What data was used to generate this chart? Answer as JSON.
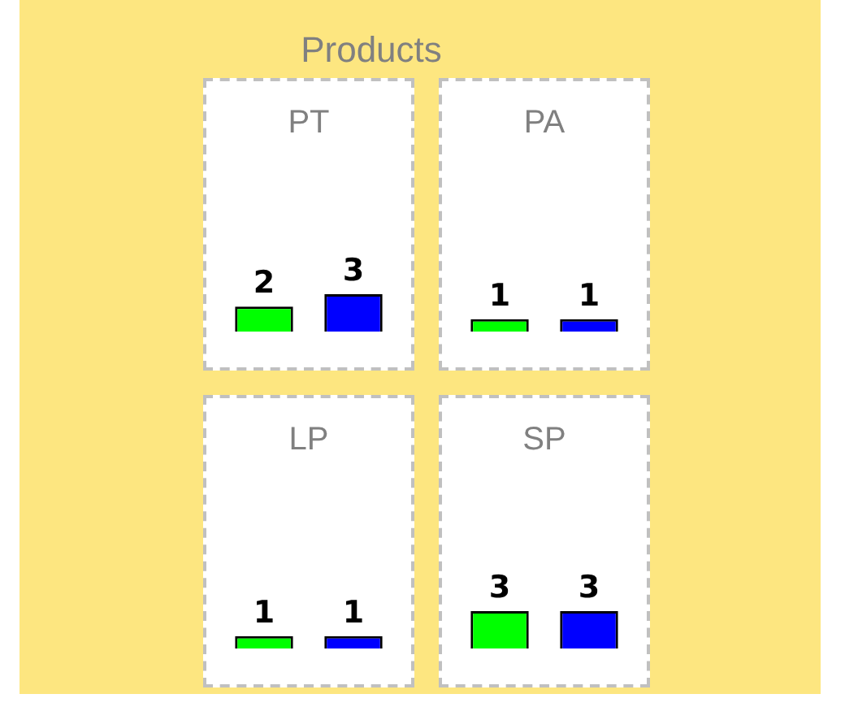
{
  "chart_data": [
    {
      "type": "bar",
      "title": "PT",
      "annotations": [
        "Products"
      ],
      "categories": [
        null,
        null
      ],
      "values": [
        2,
        3
      ],
      "colors": [
        "#00ff00",
        "#0000ff"
      ],
      "data_labels": true
    },
    {
      "type": "bar",
      "title": "PA",
      "categories": [
        null,
        null
      ],
      "values": [
        1,
        1
      ],
      "colors": [
        "#00ff00",
        "#0000ff"
      ],
      "data_labels": true
    },
    {
      "type": "bar",
      "title": "LP",
      "categories": [
        null,
        null
      ],
      "values": [
        1,
        1
      ],
      "colors": [
        "#00ff00",
        "#0000ff"
      ],
      "data_labels": true
    },
    {
      "type": "bar",
      "title": "SP",
      "categories": [
        null,
        null
      ],
      "values": [
        3,
        3
      ],
      "colors": [
        "#00ff00",
        "#0000ff"
      ],
      "data_labels": true
    }
  ]
}
